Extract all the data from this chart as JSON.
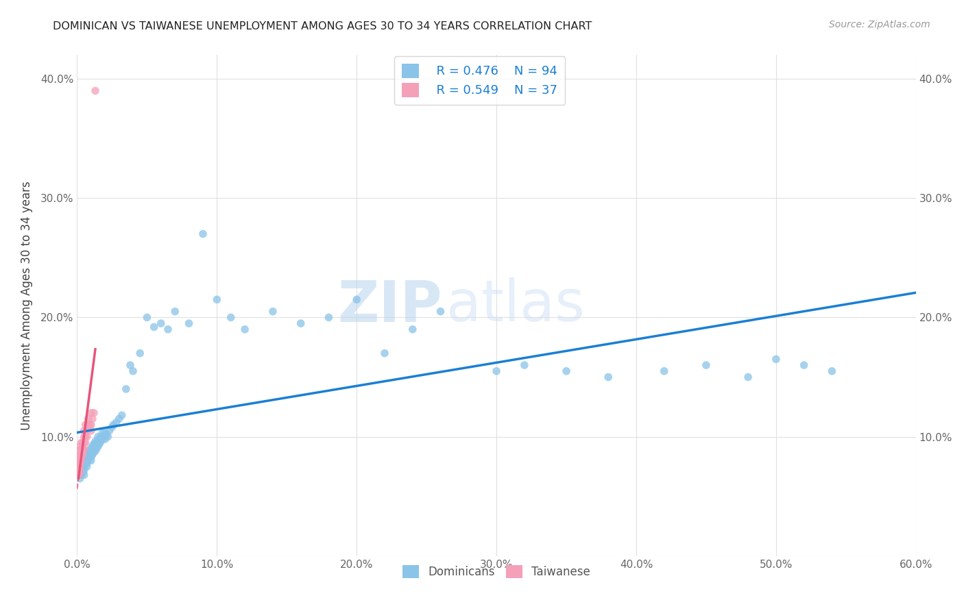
{
  "title": "DOMINICAN VS TAIWANESE UNEMPLOYMENT AMONG AGES 30 TO 34 YEARS CORRELATION CHART",
  "source": "Source: ZipAtlas.com",
  "ylabel": "Unemployment Among Ages 30 to 34 years",
  "xlim": [
    0.0,
    0.6
  ],
  "ylim": [
    0.0,
    0.42
  ],
  "xticks": [
    0.0,
    0.1,
    0.2,
    0.3,
    0.4,
    0.5,
    0.6
  ],
  "yticks": [
    0.0,
    0.1,
    0.2,
    0.3,
    0.4
  ],
  "xtick_labels": [
    "0.0%",
    "10.0%",
    "20.0%",
    "30.0%",
    "40.0%",
    "50.0%",
    "60.0%"
  ],
  "ytick_labels": [
    "",
    "10.0%",
    "20.0%",
    "30.0%",
    "40.0%"
  ],
  "dominicans_color": "#8ac4e8",
  "taiwanese_color": "#f4a0b8",
  "dominicans_line_color": "#1a7fd4",
  "taiwanese_line_color": "#e8547a",
  "dominicans_label": "Dominicans",
  "taiwanese_label": "Taiwanese",
  "legend_r_dominicans": "R = 0.476",
  "legend_n_dominicans": "N = 94",
  "legend_r_taiwanese": "R = 0.549",
  "legend_n_taiwanese": "N = 37",
  "dominicans_x": [
    0.002,
    0.002,
    0.003,
    0.003,
    0.003,
    0.004,
    0.004,
    0.004,
    0.004,
    0.005,
    0.005,
    0.005,
    0.005,
    0.005,
    0.006,
    0.006,
    0.006,
    0.007,
    0.007,
    0.007,
    0.007,
    0.008,
    0.008,
    0.008,
    0.008,
    0.009,
    0.009,
    0.009,
    0.01,
    0.01,
    0.01,
    0.01,
    0.011,
    0.011,
    0.011,
    0.012,
    0.012,
    0.012,
    0.013,
    0.013,
    0.013,
    0.014,
    0.014,
    0.015,
    0.015,
    0.015,
    0.016,
    0.016,
    0.017,
    0.017,
    0.018,
    0.018,
    0.019,
    0.02,
    0.02,
    0.021,
    0.022,
    0.023,
    0.025,
    0.026,
    0.028,
    0.03,
    0.032,
    0.035,
    0.038,
    0.04,
    0.045,
    0.05,
    0.055,
    0.06,
    0.065,
    0.07,
    0.08,
    0.09,
    0.1,
    0.11,
    0.12,
    0.14,
    0.16,
    0.18,
    0.2,
    0.22,
    0.24,
    0.26,
    0.3,
    0.32,
    0.35,
    0.38,
    0.42,
    0.45,
    0.48,
    0.5,
    0.52,
    0.54
  ],
  "dominicans_y": [
    0.065,
    0.07,
    0.068,
    0.072,
    0.075,
    0.07,
    0.073,
    0.078,
    0.072,
    0.068,
    0.075,
    0.078,
    0.08,
    0.072,
    0.078,
    0.08,
    0.082,
    0.075,
    0.08,
    0.083,
    0.078,
    0.08,
    0.082,
    0.085,
    0.088,
    0.082,
    0.085,
    0.088,
    0.08,
    0.083,
    0.086,
    0.09,
    0.085,
    0.088,
    0.092,
    0.087,
    0.09,
    0.094,
    0.088,
    0.092,
    0.096,
    0.09,
    0.095,
    0.092,
    0.096,
    0.1,
    0.094,
    0.098,
    0.096,
    0.1,
    0.098,
    0.103,
    0.1,
    0.098,
    0.103,
    0.102,
    0.1,
    0.105,
    0.108,
    0.11,
    0.112,
    0.115,
    0.118,
    0.14,
    0.16,
    0.155,
    0.17,
    0.2,
    0.192,
    0.195,
    0.19,
    0.205,
    0.195,
    0.27,
    0.215,
    0.2,
    0.19,
    0.205,
    0.195,
    0.2,
    0.215,
    0.17,
    0.19,
    0.205,
    0.155,
    0.16,
    0.155,
    0.15,
    0.155,
    0.16,
    0.15,
    0.165,
    0.16,
    0.155
  ],
  "taiwanese_x": [
    0.001,
    0.001,
    0.001,
    0.001,
    0.001,
    0.002,
    0.002,
    0.002,
    0.002,
    0.002,
    0.002,
    0.002,
    0.003,
    0.003,
    0.003,
    0.003,
    0.004,
    0.004,
    0.004,
    0.005,
    0.005,
    0.005,
    0.005,
    0.006,
    0.006,
    0.006,
    0.007,
    0.007,
    0.008,
    0.008,
    0.009,
    0.01,
    0.01,
    0.01,
    0.011,
    0.012,
    0.013
  ],
  "taiwanese_y": [
    0.068,
    0.072,
    0.075,
    0.078,
    0.08,
    0.07,
    0.075,
    0.078,
    0.082,
    0.085,
    0.088,
    0.092,
    0.08,
    0.085,
    0.09,
    0.095,
    0.085,
    0.09,
    0.095,
    0.09,
    0.095,
    0.1,
    0.105,
    0.095,
    0.1,
    0.11,
    0.1,
    0.105,
    0.11,
    0.115,
    0.11,
    0.105,
    0.11,
    0.12,
    0.115,
    0.12,
    0.39
  ],
  "watermark_text": "ZIP",
  "watermark_text2": "atlas",
  "background_color": "#ffffff",
  "grid_color": "#e0e0e0"
}
